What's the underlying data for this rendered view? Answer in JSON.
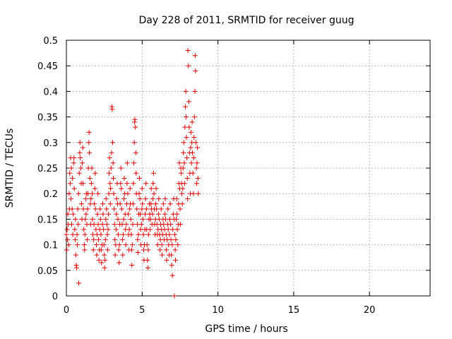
{
  "chart_data": {
    "type": "scatter",
    "title": "Day 228 of 2011, SRMTID for receiver guug",
    "xlabel": "GPS time / hours",
    "ylabel": "SRMTID / TECUs",
    "xlim": [
      0,
      24
    ],
    "ylim": [
      0,
      0.5
    ],
    "xticks": [
      0,
      5,
      10,
      15,
      20
    ],
    "yticks": [
      0,
      0.05,
      0.1,
      0.15,
      0.2,
      0.25,
      0.3,
      0.35,
      0.4,
      0.45,
      0.5
    ],
    "grid": true,
    "marker": "+",
    "color": "#e00000",
    "points": [
      [
        0.0,
        0.12
      ],
      [
        0.02,
        0.09
      ],
      [
        0.05,
        0.13
      ],
      [
        0.08,
        0.11
      ],
      [
        0.1,
        0.16
      ],
      [
        0.12,
        0.14
      ],
      [
        0.15,
        0.1
      ],
      [
        0.18,
        0.2
      ],
      [
        0.2,
        0.17
      ],
      [
        0.22,
        0.24
      ],
      [
        0.25,
        0.22
      ],
      [
        0.28,
        0.27
      ],
      [
        0.3,
        0.19
      ],
      [
        0.33,
        0.25
      ],
      [
        0.35,
        0.14
      ],
      [
        0.38,
        0.17
      ],
      [
        0.4,
        0.23
      ],
      [
        0.42,
        0.12
      ],
      [
        0.45,
        0.16
      ],
      [
        0.48,
        0.26
      ],
      [
        0.5,
        0.27
      ],
      [
        0.52,
        0.21
      ],
      [
        0.55,
        0.13
      ],
      [
        0.58,
        0.11
      ],
      [
        0.6,
        0.15
      ],
      [
        0.62,
        0.08
      ],
      [
        0.65,
        0.06
      ],
      [
        0.68,
        0.055
      ],
      [
        0.7,
        0.12
      ],
      [
        0.72,
        0.1
      ],
      [
        0.75,
        0.17
      ],
      [
        0.78,
        0.14
      ],
      [
        0.8,
        0.2
      ],
      [
        0.82,
        0.025
      ],
      [
        0.85,
        0.24
      ],
      [
        0.88,
        0.28
      ],
      [
        0.9,
        0.3
      ],
      [
        0.92,
        0.27
      ],
      [
        0.95,
        0.25
      ],
      [
        0.98,
        0.22
      ],
      [
        1.0,
        0.18
      ],
      [
        1.02,
        0.15
      ],
      [
        1.05,
        0.26
      ],
      [
        1.08,
        0.29
      ],
      [
        1.1,
        0.22
      ],
      [
        1.12,
        0.17
      ],
      [
        1.15,
        0.13
      ],
      [
        1.18,
        0.1
      ],
      [
        1.2,
        0.09
      ],
      [
        1.22,
        0.12
      ],
      [
        1.25,
        0.15
      ],
      [
        1.28,
        0.19
      ],
      [
        1.3,
        0.16
      ],
      [
        1.32,
        0.2
      ],
      [
        1.35,
        0.14
      ],
      [
        1.38,
        0.11
      ],
      [
        1.4,
        0.17
      ],
      [
        1.42,
        0.2
      ],
      [
        1.45,
        0.25
      ],
      [
        1.48,
        0.3
      ],
      [
        1.5,
        0.32
      ],
      [
        1.52,
        0.28
      ],
      [
        1.55,
        0.23
      ],
      [
        1.58,
        0.18
      ],
      [
        1.6,
        0.14
      ],
      [
        1.62,
        0.19
      ],
      [
        1.65,
        0.22
      ],
      [
        1.68,
        0.25
      ],
      [
        1.7,
        0.2
      ],
      [
        1.72,
        0.15
      ],
      [
        1.75,
        0.12
      ],
      [
        1.78,
        0.09
      ],
      [
        1.8,
        0.11
      ],
      [
        1.82,
        0.14
      ],
      [
        1.85,
        0.18
      ],
      [
        1.88,
        0.21
      ],
      [
        1.9,
        0.24
      ],
      [
        1.92,
        0.17
      ],
      [
        1.95,
        0.13
      ],
      [
        1.98,
        0.1
      ],
      [
        2.0,
        0.08
      ],
      [
        2.02,
        0.12
      ],
      [
        2.05,
        0.16
      ],
      [
        2.08,
        0.2
      ],
      [
        2.1,
        0.14
      ],
      [
        2.12,
        0.11
      ],
      [
        2.15,
        0.07
      ],
      [
        2.18,
        0.09
      ],
      [
        2.2,
        0.13
      ],
      [
        2.22,
        0.17
      ],
      [
        2.25,
        0.15
      ],
      [
        2.28,
        0.12
      ],
      [
        2.3,
        0.09
      ],
      [
        2.32,
        0.065
      ],
      [
        2.35,
        0.1
      ],
      [
        2.38,
        0.14
      ],
      [
        2.4,
        0.18
      ],
      [
        2.42,
        0.16
      ],
      [
        2.45,
        0.13
      ],
      [
        2.48,
        0.1
      ],
      [
        2.5,
        0.08
      ],
      [
        2.52,
        0.055
      ],
      [
        2.55,
        0.07
      ],
      [
        2.58,
        0.11
      ],
      [
        2.6,
        0.15
      ],
      [
        2.62,
        0.19
      ],
      [
        2.65,
        0.17
      ],
      [
        2.68,
        0.14
      ],
      [
        2.7,
        0.12
      ],
      [
        2.72,
        0.09
      ],
      [
        2.75,
        0.13
      ],
      [
        2.78,
        0.16
      ],
      [
        2.8,
        0.2
      ],
      [
        2.82,
        0.24
      ],
      [
        2.85,
        0.27
      ],
      [
        2.88,
        0.22
      ],
      [
        2.9,
        0.18
      ],
      [
        2.92,
        0.21
      ],
      [
        2.95,
        0.25
      ],
      [
        2.98,
        0.28
      ],
      [
        3.0,
        0.37
      ],
      [
        3.02,
        0.365
      ],
      [
        3.05,
        0.3
      ],
      [
        3.08,
        0.26
      ],
      [
        3.1,
        0.23
      ],
      [
        3.12,
        0.2
      ],
      [
        3.15,
        0.17
      ],
      [
        3.18,
        0.14
      ],
      [
        3.2,
        0.11
      ],
      [
        3.22,
        0.08
      ],
      [
        3.25,
        0.1
      ],
      [
        3.28,
        0.13
      ],
      [
        3.3,
        0.16
      ],
      [
        3.32,
        0.19
      ],
      [
        3.35,
        0.22
      ],
      [
        3.38,
        0.18
      ],
      [
        3.4,
        0.15
      ],
      [
        3.42,
        0.12
      ],
      [
        3.45,
        0.09
      ],
      [
        3.48,
        0.065
      ],
      [
        3.5,
        0.1
      ],
      [
        3.52,
        0.14
      ],
      [
        3.55,
        0.18
      ],
      [
        3.58,
        0.22
      ],
      [
        3.6,
        0.25
      ],
      [
        3.62,
        0.21
      ],
      [
        3.65,
        0.17
      ],
      [
        3.68,
        0.14
      ],
      [
        3.7,
        0.11
      ],
      [
        3.72,
        0.08
      ],
      [
        3.75,
        0.12
      ],
      [
        3.78,
        0.15
      ],
      [
        3.8,
        0.19
      ],
      [
        3.82,
        0.23
      ],
      [
        3.85,
        0.2
      ],
      [
        3.88,
        0.16
      ],
      [
        3.9,
        0.13
      ],
      [
        3.92,
        0.1
      ],
      [
        3.95,
        0.14
      ],
      [
        3.98,
        0.18
      ],
      [
        4.0,
        0.22
      ],
      [
        4.02,
        0.26
      ],
      [
        4.05,
        0.2
      ],
      [
        4.08,
        0.16
      ],
      [
        4.1,
        0.12
      ],
      [
        4.12,
        0.09
      ],
      [
        4.15,
        0.13
      ],
      [
        4.18,
        0.17
      ],
      [
        4.2,
        0.21
      ],
      [
        4.22,
        0.18
      ],
      [
        4.25,
        0.15
      ],
      [
        4.28,
        0.12
      ],
      [
        4.3,
        0.09
      ],
      [
        4.32,
        0.06
      ],
      [
        4.35,
        0.1
      ],
      [
        4.38,
        0.14
      ],
      [
        4.4,
        0.18
      ],
      [
        4.42,
        0.22
      ],
      [
        4.45,
        0.26
      ],
      [
        4.48,
        0.3
      ],
      [
        4.5,
        0.34
      ],
      [
        4.52,
        0.345
      ],
      [
        4.55,
        0.33
      ],
      [
        4.58,
        0.28
      ],
      [
        4.6,
        0.24
      ],
      [
        4.62,
        0.2
      ],
      [
        4.65,
        0.17
      ],
      [
        4.68,
        0.14
      ],
      [
        4.7,
        0.11
      ],
      [
        4.72,
        0.085
      ],
      [
        4.75,
        0.12
      ],
      [
        4.78,
        0.16
      ],
      [
        4.8,
        0.2
      ],
      [
        4.82,
        0.23
      ],
      [
        4.85,
        0.19
      ],
      [
        4.88,
        0.16
      ],
      [
        4.9,
        0.13
      ],
      [
        4.92,
        0.1
      ],
      [
        4.95,
        0.14
      ],
      [
        4.98,
        0.17
      ],
      [
        5.0,
        0.21
      ],
      [
        5.02,
        0.18
      ],
      [
        5.05,
        0.15
      ],
      [
        5.08,
        0.12
      ],
      [
        5.1,
        0.09
      ],
      [
        5.12,
        0.07
      ],
      [
        5.15,
        0.1
      ],
      [
        5.18,
        0.13
      ],
      [
        5.2,
        0.16
      ],
      [
        5.22,
        0.19
      ],
      [
        5.25,
        0.22
      ],
      [
        5.28,
        0.17
      ],
      [
        5.3,
        0.13
      ],
      [
        5.32,
        0.1
      ],
      [
        5.35,
        0.07
      ],
      [
        5.38,
        0.055
      ],
      [
        5.4,
        0.09
      ],
      [
        5.42,
        0.12
      ],
      [
        5.45,
        0.15
      ],
      [
        5.48,
        0.18
      ],
      [
        5.5,
        0.16
      ],
      [
        5.52,
        0.13
      ],
      [
        5.55,
        0.15
      ],
      [
        5.58,
        0.18
      ],
      [
        5.6,
        0.21
      ],
      [
        5.62,
        0.17
      ],
      [
        5.65,
        0.14
      ],
      [
        5.68,
        0.16
      ],
      [
        5.7,
        0.19
      ],
      [
        5.72,
        0.22
      ],
      [
        5.75,
        0.24
      ],
      [
        5.78,
        0.2
      ],
      [
        5.8,
        0.17
      ],
      [
        5.82,
        0.14
      ],
      [
        5.85,
        0.12
      ],
      [
        5.88,
        0.15
      ],
      [
        5.9,
        0.18
      ],
      [
        5.92,
        0.21
      ],
      [
        5.95,
        0.17
      ],
      [
        5.98,
        0.14
      ],
      [
        6.0,
        0.12
      ],
      [
        6.02,
        0.1
      ],
      [
        6.05,
        0.13
      ],
      [
        6.08,
        0.16
      ],
      [
        6.1,
        0.19
      ],
      [
        6.12,
        0.15
      ],
      [
        6.15,
        0.12
      ],
      [
        6.18,
        0.09
      ],
      [
        6.2,
        0.11
      ],
      [
        6.22,
        0.14
      ],
      [
        6.25,
        0.17
      ],
      [
        6.28,
        0.13
      ],
      [
        6.3,
        0.1
      ],
      [
        6.32,
        0.08
      ],
      [
        6.35,
        0.12
      ],
      [
        6.38,
        0.15
      ],
      [
        6.4,
        0.18
      ],
      [
        6.42,
        0.14
      ],
      [
        6.45,
        0.11
      ],
      [
        6.48,
        0.13
      ],
      [
        6.5,
        0.16
      ],
      [
        6.52,
        0.19
      ],
      [
        6.55,
        0.15
      ],
      [
        6.58,
        0.12
      ],
      [
        6.6,
        0.09
      ],
      [
        6.62,
        0.07
      ],
      [
        6.65,
        0.11
      ],
      [
        6.68,
        0.14
      ],
      [
        6.7,
        0.17
      ],
      [
        6.72,
        0.13
      ],
      [
        6.75,
        0.1
      ],
      [
        6.78,
        0.08
      ],
      [
        6.8,
        0.12
      ],
      [
        6.82,
        0.15
      ],
      [
        6.85,
        0.18
      ],
      [
        6.88,
        0.14
      ],
      [
        6.9,
        0.11
      ],
      [
        6.92,
        0.08
      ],
      [
        6.95,
        0.06
      ],
      [
        6.98,
        0.1
      ],
      [
        7.0,
        0.04
      ],
      [
        7.02,
        0.13
      ],
      [
        7.05,
        0.16
      ],
      [
        7.08,
        0.19
      ],
      [
        7.1,
        0.15
      ],
      [
        7.12,
        0.0
      ],
      [
        7.15,
        0.12
      ],
      [
        7.18,
        0.09
      ],
      [
        7.2,
        0.07
      ],
      [
        7.22,
        0.11
      ],
      [
        7.25,
        0.15
      ],
      [
        7.28,
        0.19
      ],
      [
        7.3,
        0.16
      ],
      [
        7.32,
        0.13
      ],
      [
        7.35,
        0.1
      ],
      [
        7.38,
        0.14
      ],
      [
        7.4,
        0.18
      ],
      [
        7.42,
        0.22
      ],
      [
        7.45,
        0.26
      ],
      [
        7.48,
        0.21
      ],
      [
        7.5,
        0.17
      ],
      [
        7.52,
        0.14
      ],
      [
        7.55,
        0.25
      ],
      [
        7.58,
        0.24
      ],
      [
        7.6,
        0.22
      ],
      [
        7.62,
        0.2
      ],
      [
        7.65,
        0.18
      ],
      [
        7.68,
        0.21
      ],
      [
        7.7,
        0.25
      ],
      [
        7.72,
        0.28
      ],
      [
        7.75,
        0.3
      ],
      [
        7.78,
        0.26
      ],
      [
        7.8,
        0.22
      ],
      [
        7.82,
        0.33
      ],
      [
        7.85,
        0.37
      ],
      [
        7.88,
        0.4
      ],
      [
        7.9,
        0.35
      ],
      [
        7.92,
        0.31
      ],
      [
        7.95,
        0.27
      ],
      [
        7.98,
        0.23
      ],
      [
        8.0,
        0.19
      ],
      [
        8.02,
        0.48
      ],
      [
        8.05,
        0.45
      ],
      [
        8.08,
        0.38
      ],
      [
        8.1,
        0.33
      ],
      [
        8.12,
        0.28
      ],
      [
        8.15,
        0.24
      ],
      [
        8.18,
        0.2
      ],
      [
        8.2,
        0.29
      ],
      [
        8.22,
        0.32
      ],
      [
        8.25,
        0.26
      ],
      [
        8.28,
        0.3
      ],
      [
        8.3,
        0.34
      ],
      [
        8.32,
        0.28
      ],
      [
        8.35,
        0.24
      ],
      [
        8.38,
        0.2
      ],
      [
        8.4,
        0.27
      ],
      [
        8.42,
        0.31
      ],
      [
        8.45,
        0.35
      ],
      [
        8.48,
        0.4
      ],
      [
        8.5,
        0.47
      ],
      [
        8.52,
        0.44
      ],
      [
        8.55,
        0.3
      ],
      [
        8.58,
        0.25
      ],
      [
        8.6,
        0.22
      ],
      [
        8.62,
        0.26
      ],
      [
        8.65,
        0.29
      ],
      [
        8.68,
        0.23
      ],
      [
        8.7,
        0.2
      ]
    ]
  }
}
